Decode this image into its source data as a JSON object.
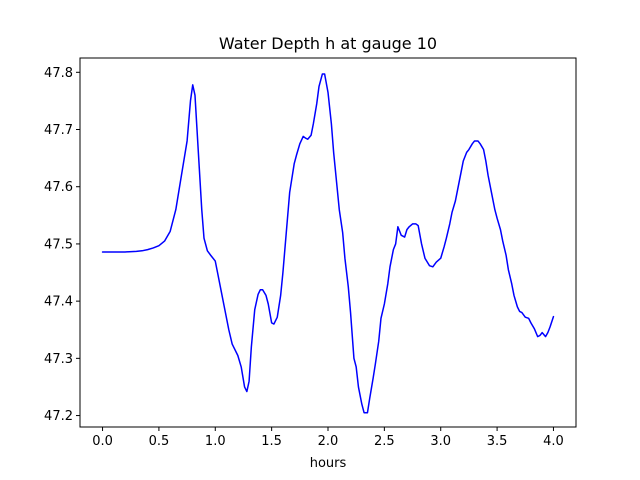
{
  "chart_data": {
    "type": "line",
    "title": "Water Depth h at gauge 10",
    "xlabel": "hours",
    "ylabel": "",
    "xlim": [
      -0.2,
      4.2
    ],
    "ylim": [
      47.18,
      47.825
    ],
    "xticks": [
      0.0,
      0.5,
      1.0,
      1.5,
      2.0,
      2.5,
      3.0,
      3.5,
      4.0
    ],
    "xtick_labels": [
      "0.0",
      "0.5",
      "1.0",
      "1.5",
      "2.0",
      "2.5",
      "3.0",
      "3.5",
      "4.0"
    ],
    "yticks": [
      47.2,
      47.3,
      47.4,
      47.5,
      47.6,
      47.7,
      47.8
    ],
    "ytick_labels": [
      "47.2",
      "47.3",
      "47.4",
      "47.5",
      "47.6",
      "47.7",
      "47.8"
    ],
    "grid": false,
    "legend": "none",
    "series": [
      {
        "color": "#0000ff",
        "x": [
          0.0,
          0.1,
          0.2,
          0.3,
          0.35,
          0.4,
          0.45,
          0.5,
          0.55,
          0.6,
          0.65,
          0.7,
          0.75,
          0.78,
          0.8,
          0.82,
          0.85,
          0.88,
          0.9,
          0.93,
          0.96,
          1.0,
          1.02,
          1.05,
          1.08,
          1.12,
          1.15,
          1.2,
          1.23,
          1.26,
          1.28,
          1.3,
          1.32,
          1.35,
          1.38,
          1.4,
          1.42,
          1.45,
          1.47,
          1.5,
          1.52,
          1.55,
          1.58,
          1.6,
          1.63,
          1.66,
          1.7,
          1.72,
          1.75,
          1.78,
          1.8,
          1.82,
          1.85,
          1.87,
          1.9,
          1.92,
          1.95,
          1.97,
          2.0,
          2.03,
          2.05,
          2.08,
          2.1,
          2.13,
          2.15,
          2.18,
          2.2,
          2.23,
          2.25,
          2.27,
          2.3,
          2.32,
          2.35,
          2.37,
          2.4,
          2.42,
          2.45,
          2.47,
          2.5,
          2.53,
          2.55,
          2.58,
          2.6,
          2.62,
          2.65,
          2.68,
          2.7,
          2.72,
          2.75,
          2.78,
          2.8,
          2.83,
          2.86,
          2.9,
          2.93,
          2.96,
          3.0,
          3.03,
          3.05,
          3.08,
          3.1,
          3.13,
          3.15,
          3.18,
          3.2,
          3.23,
          3.25,
          3.28,
          3.3,
          3.33,
          3.35,
          3.38,
          3.4,
          3.42,
          3.45,
          3.48,
          3.5,
          3.53,
          3.55,
          3.58,
          3.6,
          3.63,
          3.65,
          3.68,
          3.7,
          3.72,
          3.75,
          3.78,
          3.8,
          3.83,
          3.86,
          3.88,
          3.9,
          3.93,
          3.95,
          3.97,
          4.0
        ],
        "y": [
          47.486,
          47.486,
          47.486,
          47.487,
          47.488,
          47.49,
          47.493,
          47.497,
          47.505,
          47.522,
          47.56,
          47.62,
          47.68,
          47.75,
          47.778,
          47.76,
          47.66,
          47.56,
          47.51,
          47.488,
          47.48,
          47.47,
          47.45,
          47.42,
          47.39,
          47.35,
          47.325,
          47.305,
          47.285,
          47.25,
          47.242,
          47.26,
          47.32,
          47.385,
          47.412,
          47.42,
          47.42,
          47.41,
          47.395,
          47.362,
          47.36,
          47.372,
          47.41,
          47.45,
          47.52,
          47.59,
          47.64,
          47.655,
          47.675,
          47.688,
          47.685,
          47.683,
          47.69,
          47.71,
          47.745,
          47.775,
          47.797,
          47.797,
          47.765,
          47.71,
          47.66,
          47.6,
          47.56,
          47.52,
          47.475,
          47.425,
          47.38,
          47.3,
          47.285,
          47.25,
          47.22,
          47.205,
          47.205,
          47.23,
          47.265,
          47.29,
          47.33,
          47.37,
          47.395,
          47.43,
          47.46,
          47.49,
          47.5,
          47.53,
          47.515,
          47.512,
          47.525,
          47.53,
          47.535,
          47.535,
          47.532,
          47.5,
          47.475,
          47.462,
          47.46,
          47.468,
          47.475,
          47.495,
          47.51,
          47.535,
          47.555,
          47.575,
          47.595,
          47.625,
          47.645,
          47.66,
          47.665,
          47.675,
          47.68,
          47.68,
          47.675,
          47.665,
          47.645,
          47.62,
          47.59,
          47.56,
          47.545,
          47.525,
          47.505,
          47.48,
          47.455,
          47.43,
          47.41,
          47.39,
          47.382,
          47.38,
          47.372,
          47.37,
          47.362,
          47.352,
          47.338,
          47.34,
          47.345,
          47.338,
          47.345,
          47.355,
          47.373
        ]
      }
    ]
  }
}
